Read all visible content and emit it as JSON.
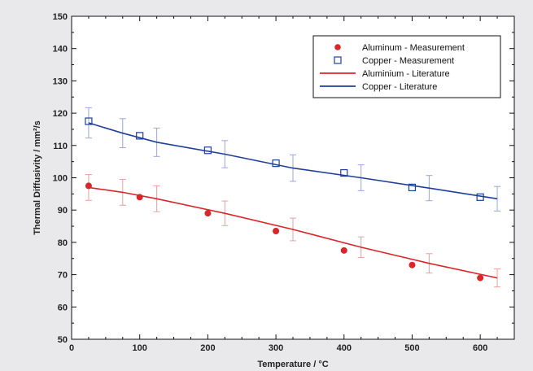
{
  "chart_data": {
    "type": "scatter",
    "xlabel": "Temperature / °C",
    "ylabel": "Thermal Diffusivity / mm²/s",
    "xlim": [
      0,
      650
    ],
    "ylim": [
      50,
      150
    ],
    "xticks": [
      0,
      100,
      200,
      300,
      400,
      500,
      600
    ],
    "yticks": [
      50,
      60,
      70,
      80,
      90,
      100,
      110,
      120,
      130,
      140,
      150
    ],
    "grid": false,
    "legend_position": "top-right",
    "series": [
      {
        "name": "Aluminum - Measurement",
        "kind": "points",
        "marker": "filled-circle",
        "color": "#d9262a",
        "x": [
          25,
          100,
          200,
          300,
          400,
          500,
          600
        ],
        "y": [
          97.5,
          94,
          89,
          83.5,
          77.5,
          73,
          69
        ]
      },
      {
        "name": "Copper - Measurement",
        "kind": "points",
        "marker": "open-square",
        "color": "#1f3f9c",
        "x": [
          25,
          100,
          200,
          300,
          400,
          500,
          600
        ],
        "y": [
          117.5,
          113,
          108.5,
          104.5,
          101.5,
          97,
          94
        ]
      },
      {
        "name": "Aluminium - Literature",
        "kind": "line",
        "color": "#d9262a",
        "x": [
          25,
          75,
          125,
          225,
          325,
          425,
          525,
          625
        ],
        "y": [
          97,
          95.5,
          93.5,
          89,
          84,
          78.5,
          73.5,
          69
        ],
        "error": [
          4,
          4,
          4,
          3.8,
          3.5,
          3.2,
          3,
          2.8
        ]
      },
      {
        "name": "Copper - Literature",
        "kind": "line",
        "color": "#1f3f9c",
        "x": [
          25,
          75,
          125,
          225,
          325,
          425,
          525,
          625
        ],
        "y": [
          117,
          113.8,
          111,
          107.3,
          103,
          100,
          96.8,
          93.5
        ],
        "error": [
          4.7,
          4.5,
          4.4,
          4.2,
          4.1,
          4,
          3.9,
          3.8
        ]
      }
    ]
  }
}
